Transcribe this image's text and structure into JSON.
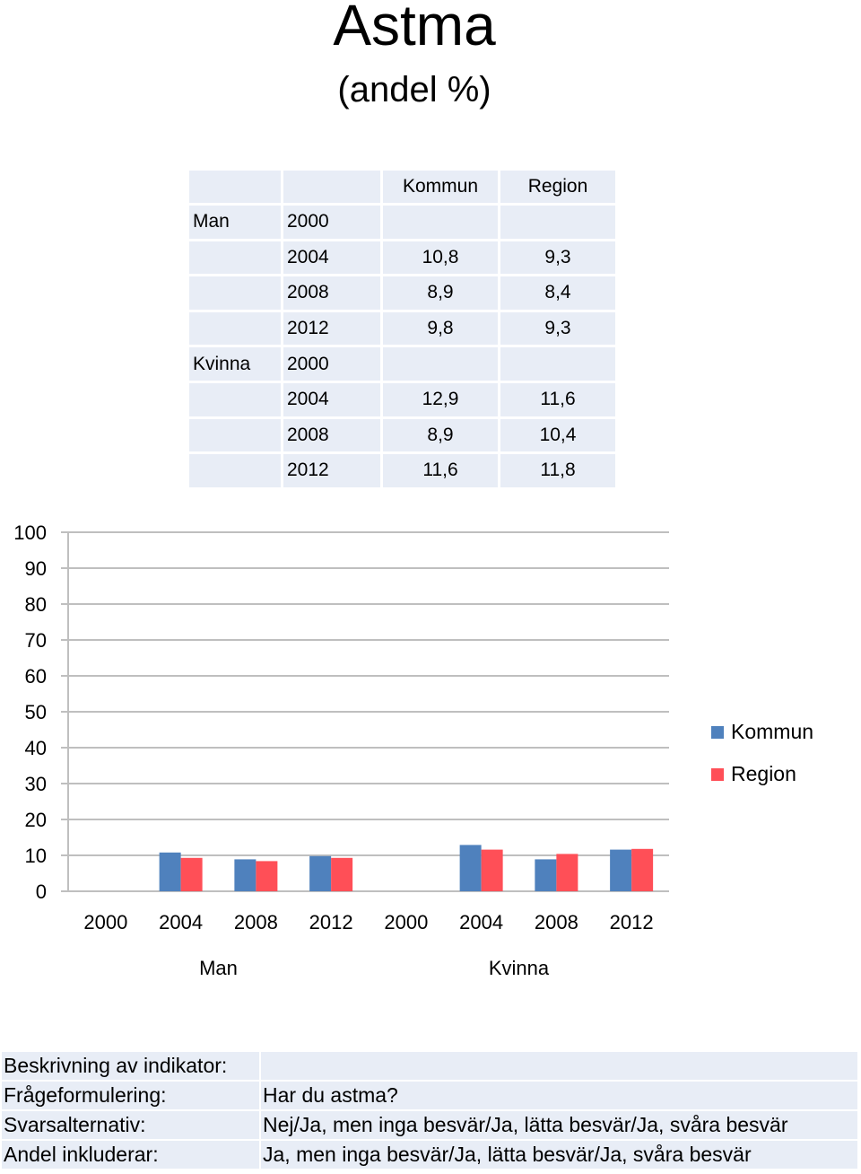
{
  "title": "Astma",
  "subtitle": "(andel %)",
  "table": {
    "headers": [
      "Kommun",
      "Region"
    ],
    "rows": [
      {
        "group": "Man",
        "year": "2000",
        "kommun": "",
        "region": ""
      },
      {
        "group": "",
        "year": "2004",
        "kommun": "10,8",
        "region": "9,3"
      },
      {
        "group": "",
        "year": "2008",
        "kommun": "8,9",
        "region": "8,4"
      },
      {
        "group": "",
        "year": "2012",
        "kommun": "9,8",
        "region": "9,3"
      },
      {
        "group": "Kvinna",
        "year": "2000",
        "kommun": "",
        "region": ""
      },
      {
        "group": "",
        "year": "2004",
        "kommun": "12,9",
        "region": "11,6"
      },
      {
        "group": "",
        "year": "2008",
        "kommun": "8,9",
        "region": "10,4"
      },
      {
        "group": "",
        "year": "2012",
        "kommun": "11,6",
        "region": "11,8"
      }
    ]
  },
  "chart_data": {
    "type": "bar",
    "title": "Astma",
    "subtitle": "(andel %)",
    "categories": [
      "2000",
      "2004",
      "2008",
      "2012",
      "2000",
      "2004",
      "2008",
      "2012"
    ],
    "groups": [
      {
        "label": "Man",
        "categories": [
          "2000",
          "2004",
          "2008",
          "2012"
        ]
      },
      {
        "label": "Kvinna",
        "categories": [
          "2000",
          "2004",
          "2008",
          "2012"
        ]
      }
    ],
    "series": [
      {
        "name": "Kommun",
        "color": "#4f81bd",
        "values": [
          null,
          10.8,
          8.9,
          9.8,
          null,
          12.9,
          8.9,
          11.6
        ]
      },
      {
        "name": "Region",
        "color": "#ff4f57",
        "values": [
          null,
          9.3,
          8.4,
          9.3,
          null,
          11.6,
          10.4,
          11.8
        ]
      }
    ],
    "ylim": [
      0,
      100
    ],
    "yticks": [
      "0",
      "10",
      "20",
      "30",
      "40",
      "50",
      "60",
      "70",
      "80",
      "90",
      "100"
    ],
    "grid": true,
    "legend": "right",
    "xlabel": "",
    "ylabel": ""
  },
  "info": [
    {
      "label": "Beskrivning av indikator:",
      "value": ""
    },
    {
      "label": "Frågeformulering:",
      "value": "Har du astma?"
    },
    {
      "label": "Svarsalternativ:",
      "value": "Nej/Ja, men inga besvär/Ja, lätta besvär/Ja, svåra besvär"
    },
    {
      "label": "Andel inkluderar:",
      "value": "Ja, men inga besvär/Ja, lätta besvär/Ja, svåra besvär"
    }
  ]
}
